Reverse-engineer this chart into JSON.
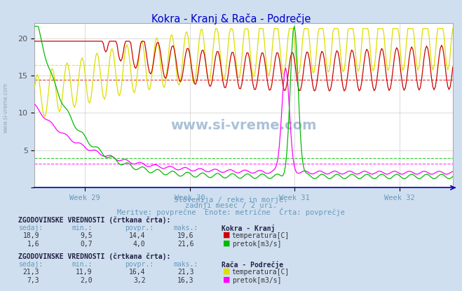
{
  "title": "Kokra - Kranj & Rača - Podrečje",
  "title_color": "#0000cc",
  "bg_color": "#d0dff0",
  "plot_bg_color": "#ffffff",
  "subtitle_lines": [
    "Slovenija / reke in morje.",
    "zadnji mesec / 2 uri.",
    "Meritve: povprečne  Enote: metrične  Črta: povprečje"
  ],
  "subtitle_color": "#6699bb",
  "xtick_labels": [
    "Week 29",
    "Week 30",
    "Week 31",
    "Week 32"
  ],
  "yticks": [
    0,
    5,
    10,
    15,
    20
  ],
  "ymin": 0,
  "ymax": 22,
  "n_points": 336,
  "kokra_temp_color": "#cc0000",
  "kokra_flow_color": "#00bb00",
  "raca_temp_color": "#dddd00",
  "raca_flow_color": "#ff00ff",
  "avg_kokra_temp": 14.4,
  "avg_kokra_flow": 4.0,
  "avg_raca_temp": 16.4,
  "avg_raca_flow": 3.2,
  "min_kokra_temp": 9.5,
  "max_kokra_temp": 19.6,
  "min_kokra_flow": 0.7,
  "max_kokra_flow": 21.6,
  "min_raca_temp": 11.9,
  "max_raca_temp": 21.3,
  "min_raca_flow": 2.0,
  "max_raca_flow": 16.3,
  "table1_title": "ZGODOVINSKE VREDNOSTI (črtkana črta):",
  "table1_header": [
    "sedaj:",
    "min.:",
    "povpr.:",
    "maks.:"
  ],
  "table1_row1": [
    "18,9",
    "9,5",
    "14,4",
    "19,6"
  ],
  "table1_row2": [
    "1,6",
    "0,7",
    "4,0",
    "21,6"
  ],
  "table1_station": "Kokra - Kranj",
  "table2_title": "ZGODOVINSKE VREDNOSTI (črtkana črta):",
  "table2_header": [
    "sedaj:",
    "min.:",
    "povpr.:",
    "maks.:"
  ],
  "table2_row1": [
    "21,3",
    "11,9",
    "16,4",
    "21,3"
  ],
  "table2_row2": [
    "7,3",
    "2,0",
    "3,2",
    "16,3"
  ],
  "table2_station": "Rača - Podrečje",
  "watermark": "www.si-vreme.com",
  "watermark_color": "#4477aa",
  "side_watermark": "www.si-vreme.com",
  "side_watermark_color": "#8899aa"
}
